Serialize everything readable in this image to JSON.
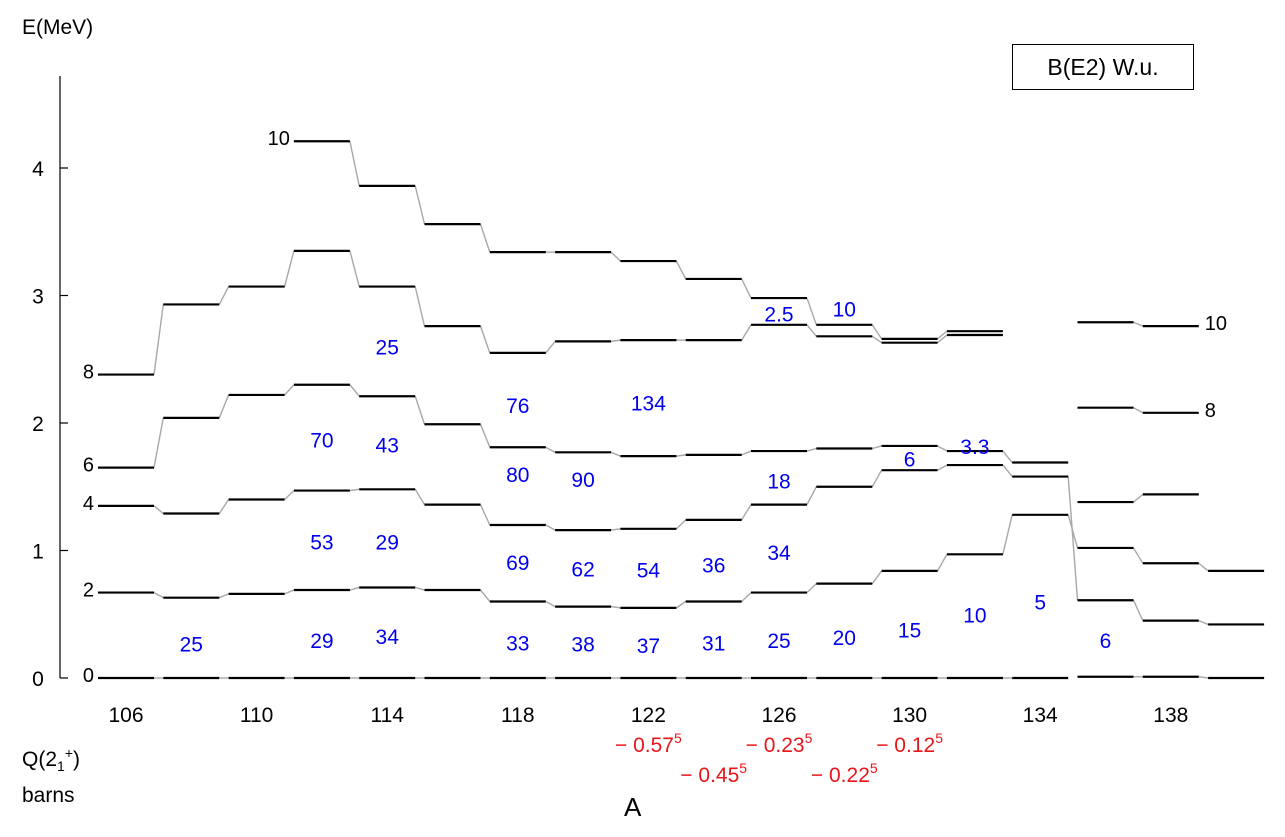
{
  "colors": {
    "blue": "#0000ee",
    "red": "#e8161b",
    "level": "#000000",
    "connector": "#a8a8a8"
  },
  "labels": {
    "ylabel": "E(MeV)",
    "legend": "B(E2) W.u.",
    "q_label_main": "Q(2",
    "q_label_sub": "1",
    "q_label_sup": "+",
    "q_label_close": ")",
    "q_label_unit": "barns",
    "xlabel": "A"
  },
  "chart_data": {
    "type": "level-scheme",
    "x": [
      106,
      108,
      110,
      112,
      114,
      116,
      118,
      120,
      122,
      124,
      126,
      128,
      130,
      132,
      134,
      136,
      138,
      140
    ],
    "xticks": [
      106,
      110,
      114,
      118,
      122,
      126,
      130,
      134,
      138
    ],
    "yticks": [
      0,
      1,
      2,
      3,
      4
    ],
    "ylim": [
      0,
      4.6
    ],
    "xlim": [
      105,
      141
    ],
    "series": [
      {
        "spin": "0",
        "values": [
          0,
          0,
          0,
          0,
          0,
          0,
          0,
          0,
          0,
          0,
          0,
          0,
          0,
          0,
          0,
          0.01,
          0.01,
          0
        ]
      },
      {
        "spin": "2",
        "values": [
          0.67,
          0.63,
          0.66,
          0.69,
          0.71,
          0.69,
          0.6,
          0.56,
          0.55,
          0.6,
          0.67,
          0.74,
          0.84,
          0.97,
          1.28,
          0.61,
          0.45,
          0.42
        ]
      },
      {
        "spin": "4",
        "values": [
          1.35,
          1.29,
          1.4,
          1.47,
          1.48,
          1.36,
          1.2,
          1.16,
          1.17,
          1.24,
          1.36,
          1.5,
          1.63,
          1.67,
          1.58,
          1.02,
          0.9,
          0.84
        ]
      },
      {
        "spin": "6",
        "values": [
          1.65,
          2.04,
          2.22,
          2.3,
          2.21,
          1.99,
          1.81,
          1.77,
          1.74,
          1.75,
          1.78,
          1.8,
          1.82,
          1.78,
          1.69,
          1.38,
          1.44,
          null
        ]
      },
      {
        "spin": "8",
        "values": [
          2.38,
          2.93,
          3.07,
          3.35,
          3.07,
          2.76,
          2.55,
          2.64,
          2.65,
          2.65,
          2.77,
          2.68,
          2.63,
          2.69,
          null,
          2.12,
          2.08,
          null
        ]
      },
      {
        "spin": "10",
        "values": [
          null,
          null,
          null,
          4.21,
          3.86,
          3.56,
          3.34,
          3.34,
          3.27,
          3.13,
          2.98,
          2.77,
          2.66,
          2.72,
          null,
          2.79,
          2.76,
          null
        ]
      }
    ],
    "spin_labels": [
      {
        "text": "0",
        "x": 106,
        "y": 0.0,
        "side": "left"
      },
      {
        "text": "2",
        "x": 106,
        "y": 0.67,
        "side": "left"
      },
      {
        "text": "4",
        "x": 106,
        "y": 1.35,
        "side": "left"
      },
      {
        "text": "6",
        "x": 106,
        "y": 1.65,
        "side": "left"
      },
      {
        "text": "8",
        "x": 106,
        "y": 2.38,
        "side": "left"
      },
      {
        "text": "10",
        "x": 112,
        "y": 4.21,
        "side": "left"
      },
      {
        "text": "10",
        "x": 138,
        "y": 2.76,
        "side": "right"
      },
      {
        "text": "8",
        "x": 138,
        "y": 2.08,
        "side": "right"
      }
    ],
    "be2_annotations": [
      {
        "text": "25",
        "x": 108,
        "y": 0.27
      },
      {
        "text": "29",
        "x": 112,
        "y": 0.3
      },
      {
        "text": "34",
        "x": 114,
        "y": 0.33
      },
      {
        "text": "33",
        "x": 118,
        "y": 0.28
      },
      {
        "text": "38",
        "x": 120,
        "y": 0.27
      },
      {
        "text": "37",
        "x": 122,
        "y": 0.26
      },
      {
        "text": "31",
        "x": 124,
        "y": 0.28
      },
      {
        "text": "25",
        "x": 126,
        "y": 0.3
      },
      {
        "text": "20",
        "x": 128,
        "y": 0.32
      },
      {
        "text": "15",
        "x": 130,
        "y": 0.38
      },
      {
        "text": "10",
        "x": 132,
        "y": 0.5
      },
      {
        "text": "5",
        "x": 134,
        "y": 0.6
      },
      {
        "text": "6",
        "x": 136,
        "y": 0.3
      },
      {
        "text": "53",
        "x": 112,
        "y": 1.07
      },
      {
        "text": "29",
        "x": 114,
        "y": 1.07
      },
      {
        "text": "69",
        "x": 118,
        "y": 0.91
      },
      {
        "text": "62",
        "x": 120,
        "y": 0.86
      },
      {
        "text": "54",
        "x": 122,
        "y": 0.85
      },
      {
        "text": "36",
        "x": 124,
        "y": 0.89
      },
      {
        "text": "34",
        "x": 126,
        "y": 0.99
      },
      {
        "text": "70",
        "x": 112,
        "y": 1.87
      },
      {
        "text": "43",
        "x": 114,
        "y": 1.83
      },
      {
        "text": "80",
        "x": 118,
        "y": 1.6
      },
      {
        "text": "90",
        "x": 120,
        "y": 1.56
      },
      {
        "text": "18",
        "x": 126,
        "y": 1.55
      },
      {
        "text": "6",
        "x": 130,
        "y": 1.72
      },
      {
        "text": "3.3",
        "x": 132,
        "y": 1.82
      },
      {
        "text": "25",
        "x": 114,
        "y": 2.6
      },
      {
        "text": "76",
        "x": 118,
        "y": 2.14
      },
      {
        "text": "134",
        "x": 122,
        "y": 2.16
      },
      {
        "text": "2.5",
        "x": 126,
        "y": 2.86
      },
      {
        "text": "10",
        "x": 128,
        "y": 2.9
      }
    ],
    "quadrupole": [
      {
        "a": 122,
        "text": "− 0.57",
        "sup": "5",
        "row": 1
      },
      {
        "a": 126,
        "text": "− 0.23",
        "sup": "5",
        "row": 1
      },
      {
        "a": 130,
        "text": "− 0.12",
        "sup": "5",
        "row": 1
      },
      {
        "a": 124,
        "text": "− 0.45",
        "sup": "5",
        "row": 2
      },
      {
        "a": 128,
        "text": "− 0.22",
        "sup": "5",
        "row": 2
      }
    ]
  }
}
